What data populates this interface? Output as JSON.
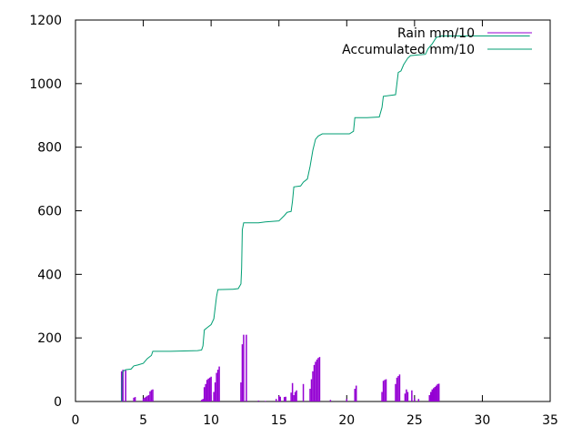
{
  "chart_data": {
    "type": "line",
    "xlim": [
      0,
      35
    ],
    "ylim": [
      0,
      1200
    ],
    "xticks": [
      0,
      5,
      10,
      15,
      20,
      25,
      30,
      35
    ],
    "yticks": [
      0,
      200,
      400,
      600,
      800,
      1000,
      1200
    ],
    "grid": false,
    "legend_position": "top-right",
    "series": [
      {
        "name": "Rain mm/10",
        "style": "impulses",
        "color": "#9400d3",
        "points": [
          [
            3.4,
            95
          ],
          [
            3.5,
            100
          ],
          [
            3.7,
            98
          ],
          [
            4.3,
            12
          ],
          [
            4.4,
            14
          ],
          [
            5.0,
            10
          ],
          [
            5.1,
            12
          ],
          [
            5.2,
            15
          ],
          [
            5.3,
            18
          ],
          [
            5.4,
            20
          ],
          [
            5.5,
            32
          ],
          [
            5.6,
            36
          ],
          [
            5.7,
            38
          ],
          [
            9.3,
            5
          ],
          [
            9.4,
            8
          ],
          [
            9.5,
            45
          ],
          [
            9.6,
            55
          ],
          [
            9.7,
            68
          ],
          [
            9.8,
            72
          ],
          [
            9.9,
            75
          ],
          [
            10.0,
            78
          ],
          [
            10.2,
            30
          ],
          [
            10.3,
            60
          ],
          [
            10.4,
            90
          ],
          [
            10.5,
            100
          ],
          [
            10.6,
            110
          ],
          [
            12.2,
            60
          ],
          [
            12.3,
            180
          ],
          [
            12.4,
            210
          ],
          [
            12.6,
            210
          ],
          [
            13.5,
            3
          ],
          [
            14.0,
            2
          ],
          [
            14.8,
            8
          ],
          [
            15.0,
            18
          ],
          [
            15.1,
            15
          ],
          [
            15.4,
            14
          ],
          [
            15.5,
            15
          ],
          [
            15.9,
            28
          ],
          [
            16.0,
            58
          ],
          [
            16.1,
            20
          ],
          [
            16.2,
            30
          ],
          [
            16.3,
            35
          ],
          [
            16.8,
            55
          ],
          [
            17.3,
            40
          ],
          [
            17.4,
            70
          ],
          [
            17.5,
            95
          ],
          [
            17.6,
            115
          ],
          [
            17.7,
            125
          ],
          [
            17.8,
            132
          ],
          [
            17.9,
            137
          ],
          [
            18.0,
            140
          ],
          [
            18.8,
            5
          ],
          [
            20.0,
            8
          ],
          [
            20.6,
            40
          ],
          [
            20.7,
            50
          ],
          [
            22.6,
            30
          ],
          [
            22.7,
            65
          ],
          [
            22.8,
            68
          ],
          [
            22.9,
            70
          ],
          [
            23.6,
            55
          ],
          [
            23.7,
            75
          ],
          [
            23.8,
            80
          ],
          [
            23.9,
            85
          ],
          [
            24.3,
            25
          ],
          [
            24.4,
            38
          ],
          [
            24.5,
            30
          ],
          [
            24.8,
            35
          ],
          [
            25.0,
            10
          ],
          [
            25.3,
            8
          ],
          [
            26.1,
            20
          ],
          [
            26.2,
            30
          ],
          [
            26.3,
            38
          ],
          [
            26.4,
            42
          ],
          [
            26.5,
            46
          ],
          [
            26.6,
            50
          ],
          [
            26.7,
            55
          ],
          [
            26.8,
            56
          ]
        ]
      },
      {
        "name": "Accumulated mm/10",
        "style": "line",
        "color": "#009e73",
        "points": [
          [
            3.4,
            0
          ],
          [
            3.42,
            60
          ],
          [
            3.5,
            95
          ],
          [
            3.7,
            100
          ],
          [
            4.1,
            102
          ],
          [
            4.3,
            112
          ],
          [
            4.6,
            115
          ],
          [
            5.0,
            120
          ],
          [
            5.3,
            135
          ],
          [
            5.6,
            145
          ],
          [
            5.7,
            158
          ],
          [
            7.0,
            158
          ],
          [
            9.0,
            160
          ],
          [
            9.3,
            162
          ],
          [
            9.4,
            175
          ],
          [
            9.5,
            225
          ],
          [
            9.7,
            232
          ],
          [
            10.0,
            242
          ],
          [
            10.2,
            260
          ],
          [
            10.4,
            330
          ],
          [
            10.5,
            352
          ],
          [
            11.6,
            353
          ],
          [
            12.0,
            355
          ],
          [
            12.2,
            370
          ],
          [
            12.25,
            420
          ],
          [
            12.3,
            540
          ],
          [
            12.4,
            562
          ],
          [
            13.5,
            562
          ],
          [
            14.0,
            565
          ],
          [
            15.0,
            568
          ],
          [
            15.4,
            585
          ],
          [
            15.6,
            595
          ],
          [
            15.9,
            598
          ],
          [
            16.0,
            630
          ],
          [
            16.1,
            675
          ],
          [
            16.6,
            678
          ],
          [
            16.8,
            690
          ],
          [
            17.1,
            700
          ],
          [
            17.3,
            740
          ],
          [
            17.5,
            790
          ],
          [
            17.7,
            825
          ],
          [
            17.9,
            835
          ],
          [
            18.2,
            842
          ],
          [
            20.2,
            842
          ],
          [
            20.5,
            850
          ],
          [
            20.6,
            893
          ],
          [
            21.5,
            893
          ],
          [
            22.4,
            895
          ],
          [
            22.6,
            925
          ],
          [
            22.7,
            960
          ],
          [
            23.6,
            965
          ],
          [
            23.7,
            1000
          ],
          [
            23.8,
            1035
          ],
          [
            24.0,
            1040
          ],
          [
            24.2,
            1060
          ],
          [
            24.5,
            1080
          ],
          [
            24.7,
            1088
          ],
          [
            25.2,
            1090
          ],
          [
            25.8,
            1092
          ],
          [
            26.0,
            1110
          ],
          [
            26.3,
            1125
          ],
          [
            26.6,
            1145
          ],
          [
            27.0,
            1150
          ],
          [
            33.5,
            1150
          ]
        ]
      }
    ]
  }
}
